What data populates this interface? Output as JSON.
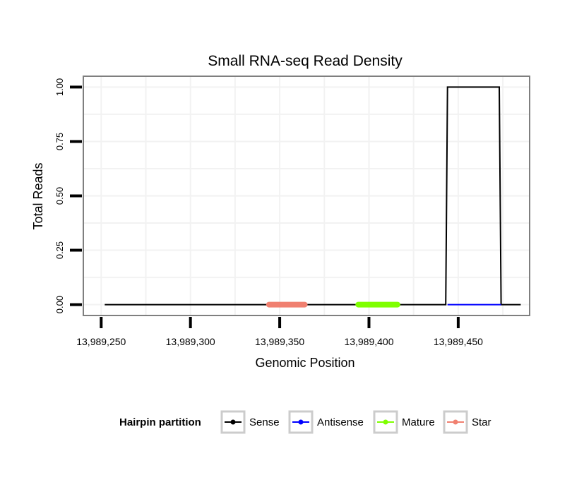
{
  "chart_data": {
    "type": "line",
    "title": "Small RNA-seq Read Density",
    "xlabel": "Genomic Position",
    "ylabel": "Total Reads",
    "xlim": [
      13989240,
      13989490
    ],
    "ylim": [
      -0.05,
      1.05
    ],
    "x_ticks": [
      13989250,
      13989300,
      13989350,
      13989400,
      13989450
    ],
    "x_tick_labels": [
      "13,989,250",
      "13,989,300",
      "13,989,350",
      "13,989,400",
      "13,989,450"
    ],
    "y_ticks": [
      0,
      0.25,
      0.5,
      0.75,
      1.0
    ],
    "y_tick_labels": [
      "0.00",
      "0.25",
      "0.50",
      "0.75",
      "1.00"
    ],
    "grid": true,
    "legend_position": "bottom",
    "legend_title": "Hairpin partition",
    "colors": {
      "sense": "#000000",
      "antisense": "#0000ff",
      "mature": "#7fff00",
      "star": "#f08070",
      "panel_border": "#7f7f7f",
      "grid": "#f2f2f2",
      "legend_key_border": "#cccccc"
    },
    "series": [
      {
        "name": "Sense",
        "color": "#000000",
        "points": [
          [
            13989252,
            0
          ],
          [
            13989443,
            0
          ],
          [
            13989444,
            1
          ],
          [
            13989473,
            1
          ],
          [
            13989474,
            0
          ],
          [
            13989485,
            0
          ]
        ]
      },
      {
        "name": "Antisense",
        "color": "#0000ff",
        "points": [
          [
            13989444,
            0
          ],
          [
            13989474,
            0
          ]
        ]
      },
      {
        "name": "Mature",
        "color": "#7fff00",
        "points": [
          [
            13989394,
            0
          ],
          [
            13989416,
            0
          ]
        ]
      },
      {
        "name": "Star",
        "color": "#f08070",
        "points": [
          [
            13989344,
            0
          ],
          [
            13989364,
            0
          ]
        ]
      }
    ]
  }
}
